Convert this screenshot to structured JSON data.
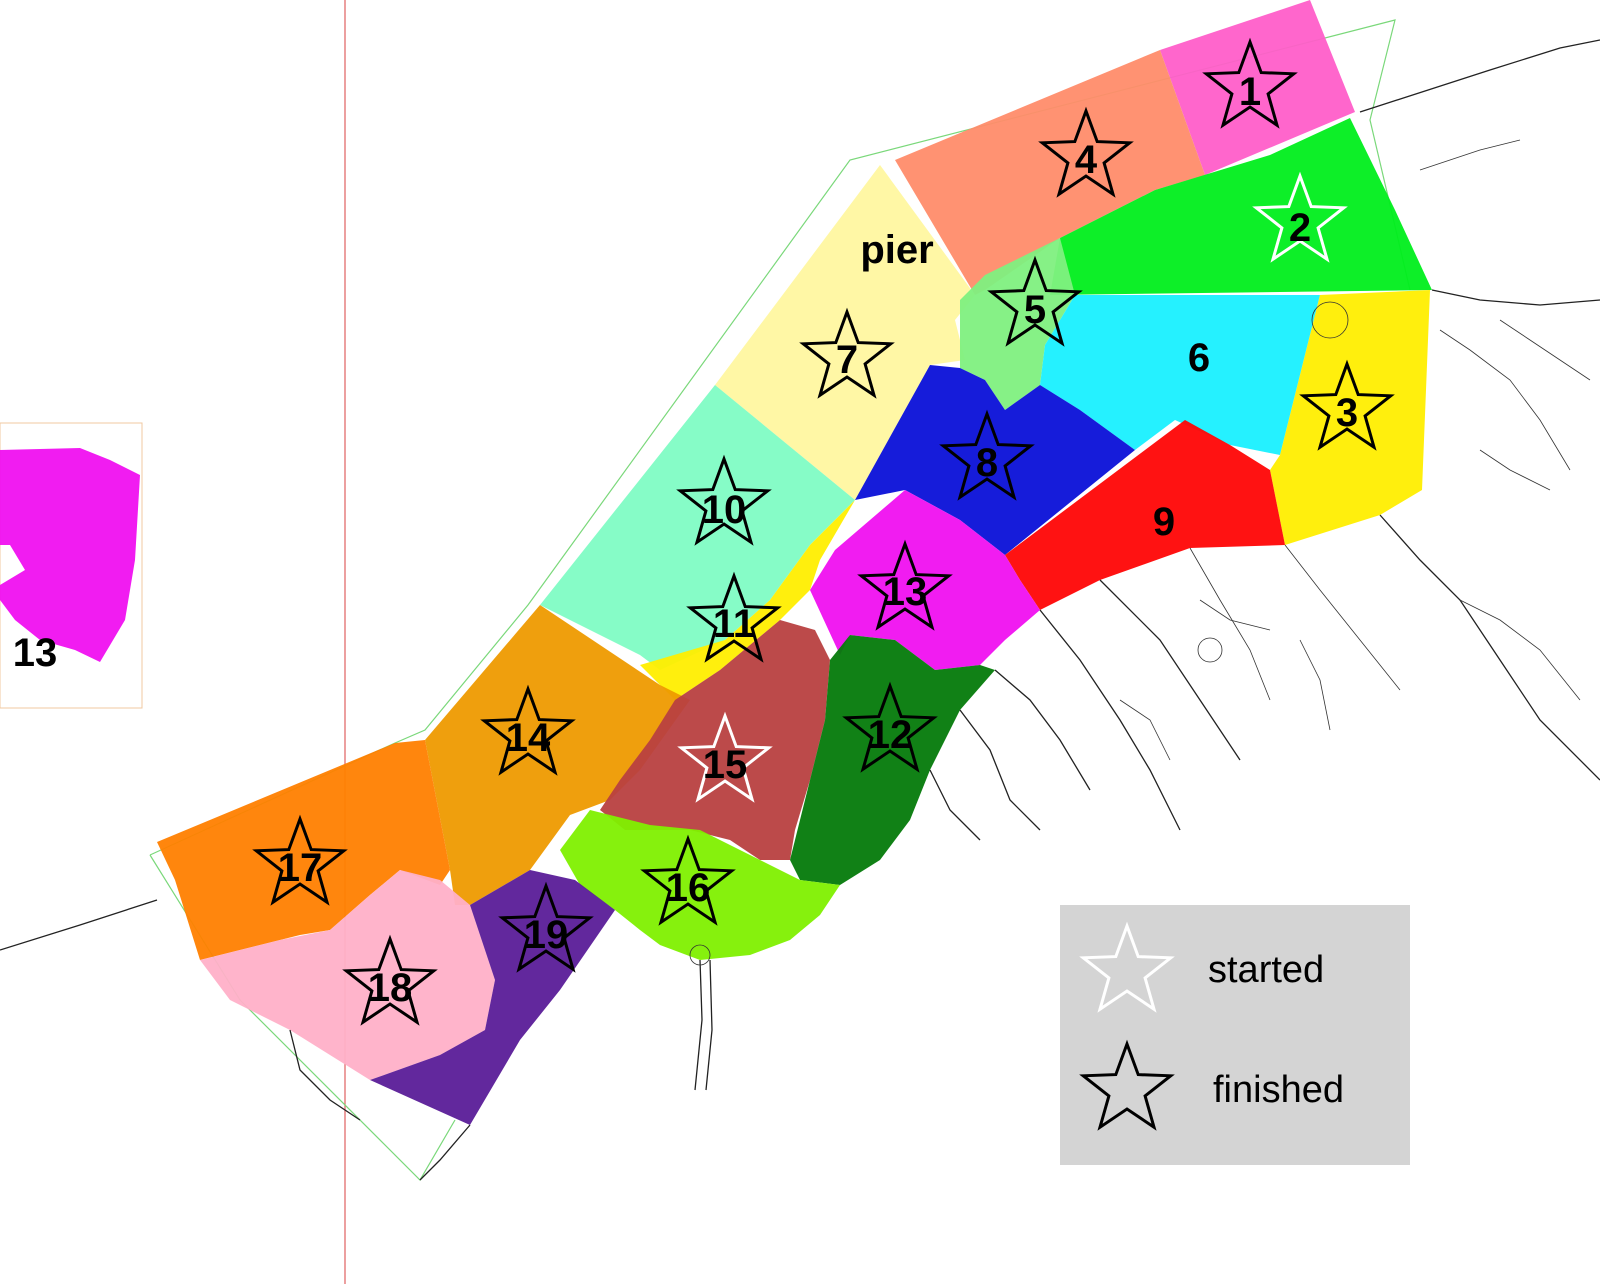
{
  "colors": {
    "zone1": "#ff5ec9",
    "zone2": "#00ee1c",
    "zone3": "#ffee00",
    "zone4": "#ff8c6a",
    "zone5": "#80f080",
    "zone6": "#19f0ff",
    "zone7": "#fff7a0",
    "zone8": "#0a10d8",
    "zone9": "#ff0505",
    "zone10": "#80fcc4",
    "zone11": "#ffee00",
    "zone12": "#047a0a",
    "zone13": "#f010f0",
    "zone14": "#ee9a00",
    "zone15": "#b84040",
    "zone16": "#80f000",
    "zone17": "#ff8000",
    "zone18": "#ffb0c8",
    "zone19": "#5a1c98",
    "legend_bg": "#d4d4d4"
  },
  "zones": [
    {
      "id": "1",
      "label": "1",
      "status": "finished"
    },
    {
      "id": "2",
      "label": "2",
      "status": "started"
    },
    {
      "id": "3",
      "label": "3",
      "status": "finished"
    },
    {
      "id": "4",
      "label": "4",
      "status": "finished"
    },
    {
      "id": "5",
      "label": "5",
      "status": "finished"
    },
    {
      "id": "6",
      "label": "6",
      "status": "none"
    },
    {
      "id": "7",
      "label": "7",
      "status": "finished"
    },
    {
      "id": "8",
      "label": "8",
      "status": "finished"
    },
    {
      "id": "9",
      "label": "9",
      "status": "none"
    },
    {
      "id": "10",
      "label": "10",
      "status": "finished"
    },
    {
      "id": "11",
      "label": "11",
      "status": "finished"
    },
    {
      "id": "12",
      "label": "12",
      "status": "finished"
    },
    {
      "id": "13",
      "label": "13",
      "status": "finished"
    },
    {
      "id": "14",
      "label": "14",
      "status": "finished"
    },
    {
      "id": "15",
      "label": "15",
      "status": "started"
    },
    {
      "id": "16",
      "label": "16",
      "status": "finished"
    },
    {
      "id": "17",
      "label": "17",
      "status": "finished"
    },
    {
      "id": "18",
      "label": "18",
      "status": "finished"
    },
    {
      "id": "19",
      "label": "19",
      "status": "finished"
    }
  ],
  "pier_label": "pier",
  "inset": {
    "label": "13"
  },
  "legend": {
    "started_label": "started",
    "finished_label": "finished"
  }
}
